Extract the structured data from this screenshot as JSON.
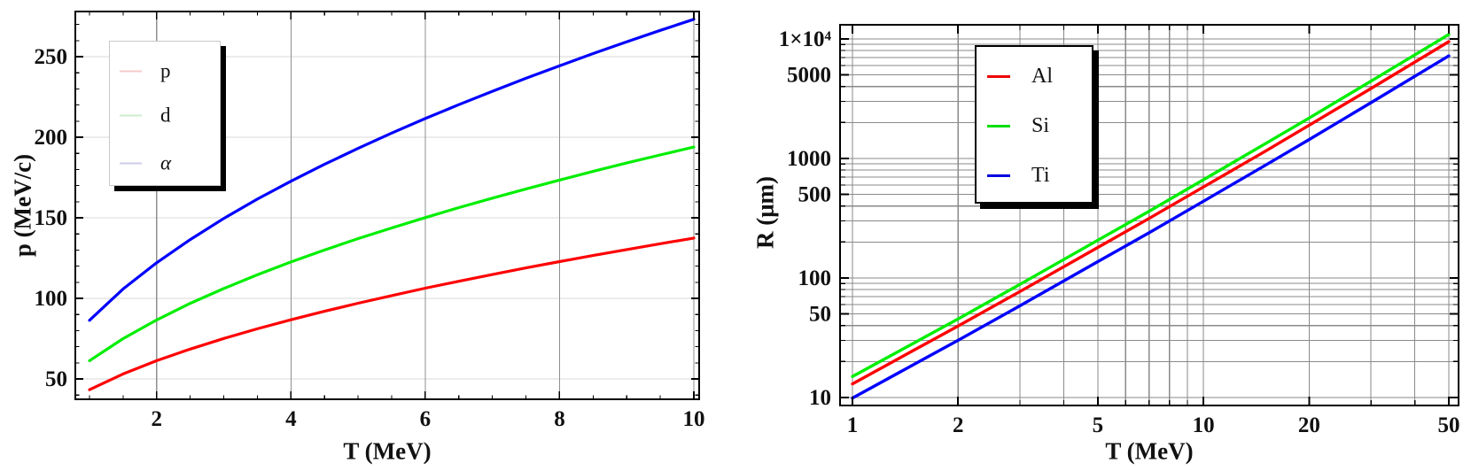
{
  "figure": {
    "background": "#ffffff"
  },
  "chart_data": [
    {
      "id": "momentum",
      "type": "line",
      "title": "",
      "xlabel": "T (MeV)",
      "ylabel": "p (MeV/c)",
      "x_scale": "linear",
      "y_scale": "linear",
      "xlim": [
        0.79,
        10.08
      ],
      "ylim": [
        37,
        278
      ],
      "x_ticks": {
        "labeled": [
          {
            "v": 2,
            "label": "2"
          },
          {
            "v": 4,
            "label": "4"
          },
          {
            "v": 6,
            "label": "6"
          },
          {
            "v": 8,
            "label": "8"
          },
          {
            "v": 10,
            "label": "10"
          }
        ],
        "minor": [
          1,
          1.5,
          2.5,
          3,
          3.5,
          4.5,
          5,
          5.5,
          6.5,
          7,
          7.5,
          8.5,
          9,
          9.5
        ]
      },
      "y_ticks": {
        "labeled": [
          {
            "v": 50,
            "label": "50"
          },
          {
            "v": 100,
            "label": "100"
          },
          {
            "v": 150,
            "label": "150"
          },
          {
            "v": 200,
            "label": "200"
          },
          {
            "v": 250,
            "label": "250"
          }
        ],
        "minor": [
          40,
          60,
          70,
          80,
          90,
          110,
          120,
          130,
          140,
          160,
          170,
          180,
          190,
          210,
          220,
          230,
          240,
          260,
          270
        ]
      },
      "grid": {
        "x": [
          2,
          4,
          6,
          8,
          10
        ],
        "y": [
          50,
          100,
          150,
          200,
          250
        ],
        "x_color": "#8f8f8f",
        "y_color": "#d8d8d8"
      },
      "series": [
        {
          "name": "p",
          "color": "#ff0000",
          "x": [
            1,
            1.5,
            2,
            2.5,
            3,
            3.5,
            4,
            4.5,
            5,
            5.5,
            6,
            6.5,
            7,
            7.5,
            8,
            8.5,
            9,
            9.5,
            10
          ],
          "y": [
            43.3,
            53.1,
            61.3,
            68.5,
            75.1,
            81.1,
            86.7,
            92.0,
            97.0,
            101.7,
            106.3,
            110.6,
            114.8,
            118.9,
            122.8,
            126.6,
            130.3,
            133.9,
            137.4
          ]
        },
        {
          "name": "d",
          "color": "#00ee00",
          "x": [
            1,
            1.5,
            2,
            2.5,
            3,
            3.5,
            4,
            4.5,
            5,
            5.5,
            6,
            6.5,
            7,
            7.5,
            8,
            8.5,
            9,
            9.5,
            10
          ],
          "y": [
            61.3,
            75.0,
            86.6,
            96.9,
            106.1,
            114.6,
            122.6,
            130.0,
            137.1,
            143.7,
            150.1,
            156.3,
            162.2,
            167.9,
            173.4,
            178.8,
            184.0,
            189.0,
            193.9
          ]
        },
        {
          "name": "α",
          "color": "#0000ff",
          "x": [
            1,
            1.5,
            2,
            2.5,
            3,
            3.5,
            4,
            4.5,
            5,
            5.5,
            6,
            6.5,
            7,
            7.5,
            8,
            8.5,
            9,
            9.5,
            10
          ],
          "y": [
            86.4,
            105.8,
            122.1,
            136.5,
            149.6,
            161.6,
            172.7,
            183.2,
            193.1,
            202.6,
            211.6,
            220.2,
            228.5,
            236.6,
            244.3,
            251.9,
            259.2,
            266.3,
            273.2
          ]
        }
      ],
      "legend": {
        "position": "upper-left",
        "items": [
          {
            "label": "p",
            "swatch": "#f6caca",
            "italic": false
          },
          {
            "label": "d",
            "swatch": "#cdeccd",
            "italic": false
          },
          {
            "label": "α",
            "swatch": "#cdcdea",
            "italic": true
          }
        ]
      }
    },
    {
      "id": "range",
      "type": "line",
      "title": "",
      "xlabel": "T (MeV)",
      "ylabel": "R (μm)",
      "x_scale": "log",
      "y_scale": "log",
      "xlim": [
        0.92,
        53.3
      ],
      "ylim": [
        8.6,
        13100
      ],
      "x_ticks": {
        "labeled": [
          {
            "v": 1,
            "label": "1"
          },
          {
            "v": 2,
            "label": "2"
          },
          {
            "v": 5,
            "label": "5"
          },
          {
            "v": 10,
            "label": "10"
          },
          {
            "v": 20,
            "label": "20"
          },
          {
            "v": 50,
            "label": "50"
          }
        ],
        "minor": [
          3,
          4,
          6,
          7,
          8,
          9,
          30,
          40
        ]
      },
      "y_ticks": {
        "labeled": [
          {
            "v": 10,
            "label": "10"
          },
          {
            "v": 50,
            "label": "50"
          },
          {
            "v": 100,
            "label": "100"
          },
          {
            "v": 500,
            "label": "500"
          },
          {
            "v": 1000,
            "label": "1000"
          },
          {
            "v": 5000,
            "label": "5000"
          },
          {
            "v": 10000,
            "label": "1×10⁴"
          }
        ],
        "minor": [
          20,
          30,
          40,
          60,
          70,
          80,
          90,
          200,
          300,
          400,
          600,
          700,
          800,
          900,
          2000,
          3000,
          4000,
          6000,
          7000,
          8000,
          9000
        ]
      },
      "grid": {
        "x": [
          1,
          2,
          3,
          4,
          5,
          6,
          7,
          8,
          9,
          10,
          20,
          30,
          40,
          50
        ],
        "y": [
          10,
          20,
          30,
          40,
          50,
          60,
          70,
          80,
          90,
          100,
          200,
          300,
          400,
          500,
          600,
          700,
          800,
          900,
          1000,
          2000,
          3000,
          4000,
          5000,
          6000,
          7000,
          8000,
          9000,
          10000
        ],
        "x_color": "#8a8a8a",
        "y_color": "#8a8a8a"
      },
      "series": [
        {
          "name": "Al",
          "color": "#ff0000",
          "x": [
            1,
            1.5,
            2,
            3,
            5,
            7,
            10,
            15,
            20,
            30,
            50
          ],
          "y": [
            13,
            25,
            39.6,
            77,
            180,
            315,
            577,
            1150,
            1900,
            3850,
            9500
          ]
        },
        {
          "name": "Si",
          "color": "#00ee00",
          "x": [
            1,
            1.5,
            2,
            3,
            5,
            7,
            10,
            15,
            20,
            30,
            50
          ],
          "y": [
            15,
            28.7,
            45.5,
            88.5,
            207,
            362,
            664,
            1330,
            2180,
            4430,
            10900
          ]
        },
        {
          "name": "Ti",
          "color": "#0000ff",
          "x": [
            1,
            1.5,
            2,
            3,
            5,
            7,
            10,
            15,
            20,
            30,
            50
          ],
          "y": [
            9.9,
            19,
            30.1,
            58.5,
            137,
            239,
            439,
            877,
            1440,
            2930,
            7220
          ]
        }
      ],
      "legend": {
        "position": "upper-center",
        "items": [
          {
            "label": "Al",
            "swatch": "#ee0000",
            "italic": false
          },
          {
            "label": "Si",
            "swatch": "#00dd00",
            "italic": false
          },
          {
            "label": "Ti",
            "swatch": "#0000dd",
            "italic": false
          }
        ]
      }
    }
  ]
}
